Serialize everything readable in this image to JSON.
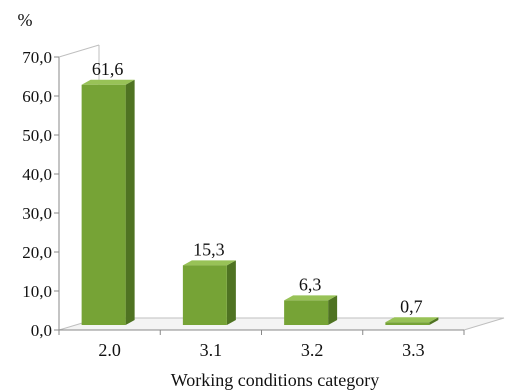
{
  "chart_data": {
    "type": "bar",
    "title": "",
    "xlabel": "Working conditions category",
    "ylabel": "%",
    "ylim": [
      0,
      70
    ],
    "yticks": [
      "0,0",
      "10,0",
      "20,0",
      "30,0",
      "40,0",
      "50,0",
      "60,0",
      "70,0"
    ],
    "categories": [
      "2.0",
      "3.1",
      "3.2",
      "3.3"
    ],
    "values": [
      61.6,
      15.3,
      6.3,
      0.7
    ],
    "value_labels": [
      "61,6",
      "15,3",
      "6,3",
      "0,7"
    ],
    "grid": false,
    "style": "3d-column",
    "colors": {
      "bar_front": "#76a336",
      "bar_side": "#4f7322",
      "bar_top": "#98c257",
      "axis": "#888888",
      "wall": "#bfbfbf"
    }
  }
}
